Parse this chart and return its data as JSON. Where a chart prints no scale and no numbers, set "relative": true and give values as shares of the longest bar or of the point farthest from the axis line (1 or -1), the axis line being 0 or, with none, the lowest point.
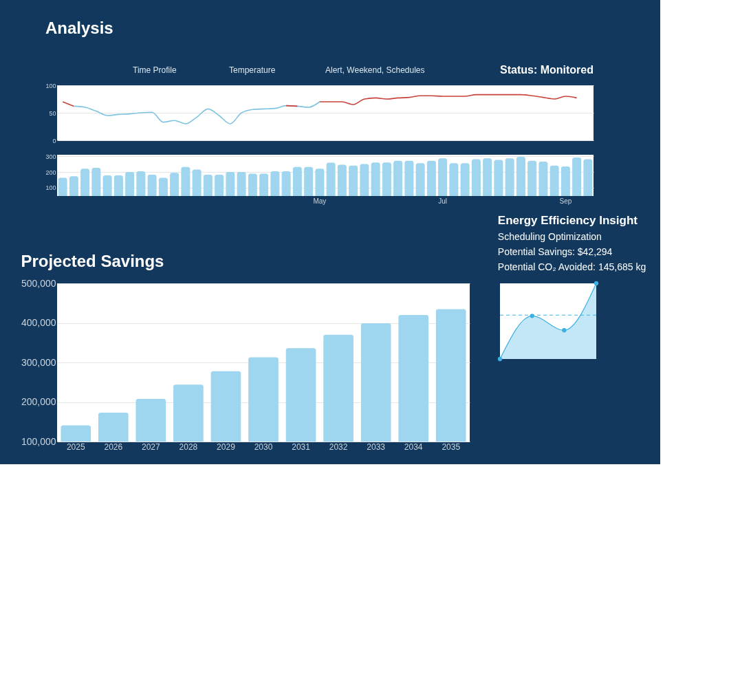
{
  "chart_data": [
    {
      "type": "line",
      "title": "Analysis",
      "annotations": [
        "Time Profile",
        "Temperature",
        "Alert, Weekend, Schedules",
        "Status: Monitored"
      ],
      "categories": [
        null,
        null,
        null,
        null,
        null,
        null,
        null,
        null,
        null,
        null,
        null,
        null,
        null,
        null,
        null,
        null,
        null,
        null,
        null,
        null,
        null,
        null,
        null,
        null,
        null,
        null,
        null,
        null,
        null,
        null,
        null,
        null,
        null,
        null,
        null,
        null,
        null,
        null,
        null,
        null,
        null,
        null,
        null,
        null,
        null,
        null,
        null,
        null
      ],
      "ylim": [
        0,
        100
      ],
      "yticks": [
        0,
        50,
        100
      ],
      "grid": "y",
      "tick_labels": "y",
      "line_style": "solid",
      "series": [
        {
          "color": "#7ec3e0",
          "values": [
            null,
            62,
            60,
            53,
            45,
            47,
            48,
            50,
            51,
            33,
            36,
            30,
            42,
            57,
            45,
            30,
            50,
            56,
            57,
            58,
            63,
            62,
            60,
            70,
            null,
            null,
            null,
            null,
            null,
            null,
            null,
            null,
            null,
            null,
            null,
            null,
            null,
            null,
            null,
            null,
            null,
            null,
            null,
            null,
            null,
            null,
            null,
            null
          ]
        },
        {
          "color": "#c8423b",
          "values": [
            70,
            62,
            null,
            null,
            null,
            null,
            null,
            null,
            null,
            null,
            null,
            null,
            null,
            null,
            null,
            null,
            null,
            null,
            null,
            null,
            63,
            62,
            null,
            70,
            70,
            70,
            65,
            75,
            77,
            75,
            77,
            78,
            81,
            81,
            80,
            80,
            80,
            83,
            83,
            83,
            83,
            83,
            81,
            78,
            75,
            80,
            77,
            null
          ]
        }
      ]
    },
    {
      "type": "bar",
      "categories": [
        null,
        null,
        null,
        null,
        null,
        null,
        null,
        null,
        null,
        null,
        null,
        null,
        null,
        null,
        null,
        null,
        null,
        null,
        null,
        null,
        null,
        null,
        null,
        "May",
        null,
        null,
        null,
        null,
        null,
        null,
        null,
        null,
        null,
        null,
        "Jul",
        null,
        null,
        null,
        null,
        null,
        null,
        null,
        null,
        null,
        null,
        "Sep",
        null,
        null
      ],
      "values": [
        163,
        173,
        221,
        227,
        179,
        179,
        200,
        205,
        183,
        163,
        195,
        232,
        216,
        183,
        183,
        200,
        200,
        189,
        189,
        205,
        205,
        232,
        232,
        221,
        260,
        246,
        241,
        251,
        261,
        261,
        272,
        272,
        256,
        272,
        287,
        256,
        256,
        282,
        287,
        277,
        287,
        297,
        272,
        266,
        241,
        235,
        292,
        282
      ],
      "color": "#9fd5ee",
      "ylim": [
        47,
        310
      ],
      "yticks": [
        100,
        200,
        300
      ],
      "grid": "y"
    },
    {
      "type": "bar",
      "title": "Projected Savings",
      "categories": [
        "2025",
        "2026",
        "2027",
        "2028",
        "2029",
        "2030",
        "2031",
        "2032",
        "2033",
        "2034",
        "2035"
      ],
      "values": [
        141000,
        173000,
        208000,
        244000,
        278000,
        313000,
        336000,
        370000,
        399000,
        420000,
        435000
      ],
      "color": "#9dd6ee",
      "ylim": [
        100000,
        500000
      ],
      "yticks": [
        {
          "value": 100000,
          "label": "100,000"
        },
        {
          "value": 200000,
          "label": "200,000"
        },
        {
          "value": 300000,
          "label": "300,000"
        },
        {
          "value": 400000,
          "label": "400,000"
        },
        {
          "value": 500000,
          "label": "500,000"
        }
      ],
      "grid": "y"
    },
    {
      "type": "area",
      "title": "Energy Efficiency Insight",
      "annotations": [
        "Scheduling Optimization",
        "Potential Savings: $42,294",
        "Potential CO₂ Avoided: 145,685 kg"
      ],
      "relative": true,
      "categories": [
        null,
        null,
        null,
        null
      ],
      "values": [
        0,
        0.57,
        0.38,
        1
      ],
      "color": "#3bb0e3",
      "marker": "circle",
      "tick_labels": false,
      "ref_lines": [
        {
          "axis": "y",
          "value": 0.58,
          "color": "#3bb0e3",
          "line_style": "dashed"
        }
      ]
    }
  ]
}
